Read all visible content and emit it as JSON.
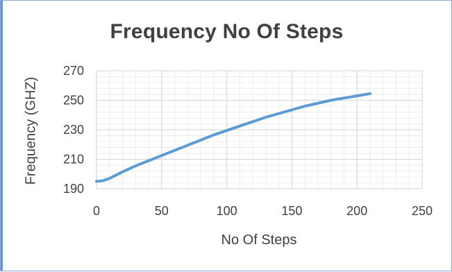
{
  "chart_data": {
    "type": "line",
    "title": "Frequency No Of Steps",
    "xlabel": "No Of Steps",
    "ylabel": "Frequency (GHZ)",
    "xlim": [
      0,
      250
    ],
    "ylim": [
      190,
      270
    ],
    "x_ticks": [
      0,
      50,
      100,
      150,
      200,
      250
    ],
    "y_ticks": [
      190,
      210,
      230,
      250,
      270
    ],
    "grid": true,
    "series": [
      {
        "color": "#5b9bd5",
        "x": [
          0,
          5,
          10,
          20,
          30,
          40,
          50,
          60,
          70,
          80,
          90,
          100,
          110,
          120,
          130,
          140,
          150,
          160,
          170,
          180,
          190,
          200,
          210
        ],
        "y": [
          195,
          195.5,
          197,
          201.5,
          205.5,
          209,
          212.5,
          216,
          219.5,
          223,
          226.5,
          229.5,
          232.5,
          235.5,
          238.5,
          241,
          243.5,
          246,
          248,
          250,
          251.5,
          253,
          254.5
        ]
      }
    ]
  },
  "theme": {
    "line_color": "#5b9bd5",
    "grid_major": "#d9d9d9",
    "grid_minor": "#ececec",
    "text_color": "#404040"
  }
}
